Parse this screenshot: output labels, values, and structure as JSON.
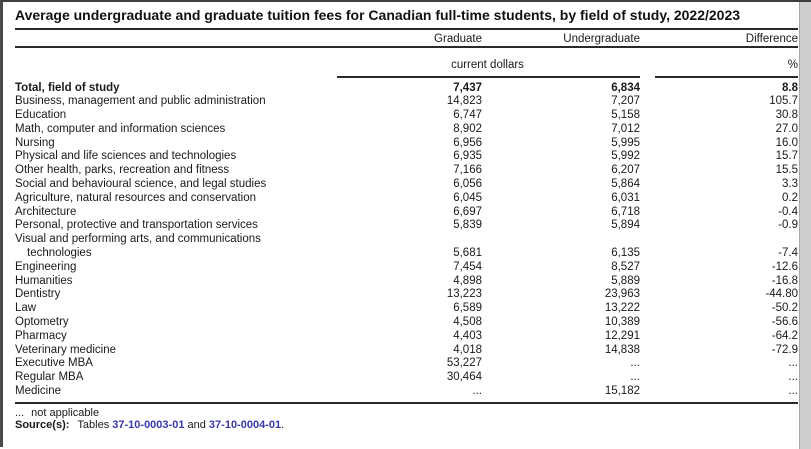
{
  "chart_data": {
    "type": "table",
    "title": "Average undergraduate and graduate tuition fees for Canadian full-time students, by field of study, 2022/2023",
    "columns": [
      "Graduate",
      "Undergraduate",
      "Difference"
    ],
    "units": {
      "tuition": "current dollars",
      "difference": "%"
    },
    "not_applicable_marker": "...",
    "rows": [
      {
        "label": "Total, field of study",
        "graduate": "7,437",
        "undergraduate": "6,834",
        "difference": "8.8",
        "bold": true
      },
      {
        "label": "Business, management and public administration",
        "graduate": "14,823",
        "undergraduate": "7,207",
        "difference": "105.7"
      },
      {
        "label": "Education",
        "graduate": "6,747",
        "undergraduate": "5,158",
        "difference": "30.8"
      },
      {
        "label": "Math, computer and information sciences",
        "graduate": "8,902",
        "undergraduate": "7,012",
        "difference": "27.0"
      },
      {
        "label": "Nursing",
        "graduate": "6,956",
        "undergraduate": "5,995",
        "difference": "16.0"
      },
      {
        "label": "Physical and life sciences and technologies",
        "graduate": "6,935",
        "undergraduate": "5,992",
        "difference": "15.7"
      },
      {
        "label": "Other health, parks, recreation and fitness",
        "graduate": "7,166",
        "undergraduate": "6,207",
        "difference": "15.5"
      },
      {
        "label": "Social and behavioural science, and legal studies",
        "graduate": "6,056",
        "undergraduate": "5,864",
        "difference": "3.3"
      },
      {
        "label": "Agriculture, natural resources and conservation",
        "graduate": "6,045",
        "undergraduate": "6,031",
        "difference": "0.2"
      },
      {
        "label": "Architecture",
        "graduate": "6,697",
        "undergraduate": "6,718",
        "difference": "-0.4"
      },
      {
        "label": "Personal, protective and transportation services",
        "graduate": "5,839",
        "undergraduate": "5,894",
        "difference": "-0.9"
      },
      {
        "label": "Visual and performing arts, and communications",
        "label_line2": "technologies",
        "graduate": "5,681",
        "undergraduate": "6,135",
        "difference": "-7.4"
      },
      {
        "label": "Engineering",
        "graduate": "7,454",
        "undergraduate": "8,527",
        "difference": "-12.6"
      },
      {
        "label": "Humanities",
        "graduate": "4,898",
        "undergraduate": "5,889",
        "difference": "-16.8"
      },
      {
        "label": "Dentistry",
        "graduate": "13,223",
        "undergraduate": "23,963",
        "difference": "-44.80"
      },
      {
        "label": "Law",
        "graduate": "6,589",
        "undergraduate": "13,222",
        "difference": "-50.2"
      },
      {
        "label": "Optometry",
        "graduate": "4,508",
        "undergraduate": "10,389",
        "difference": "-56.6"
      },
      {
        "label": "Pharmacy",
        "graduate": "4,403",
        "undergraduate": "12,291",
        "difference": "-64.2"
      },
      {
        "label": "Veterinary medicine",
        "graduate": "4,018",
        "undergraduate": "14,838",
        "difference": "-72.9"
      },
      {
        "label": "Executive MBA",
        "graduate": "53,227",
        "undergraduate": "...",
        "difference": "..."
      },
      {
        "label": "Regular MBA",
        "graduate": "30,464",
        "undergraduate": "...",
        "difference": "..."
      },
      {
        "label": "Medicine",
        "graduate": "...",
        "undergraduate": "15,182",
        "difference": "..."
      }
    ]
  },
  "footer": {
    "footnote_marker": "...",
    "footnote_text": "not applicable",
    "source_label": "Source(s):",
    "source_text_prefix": "Tables",
    "source_link_1": "37-10-0003-01",
    "source_conjunction": "and",
    "source_link_2": "37-10-0004-01",
    "source_suffix": "."
  },
  "colors": {
    "link": "#3c38ab",
    "rule": "#2a2a2a",
    "text": "#1a1a1a"
  }
}
